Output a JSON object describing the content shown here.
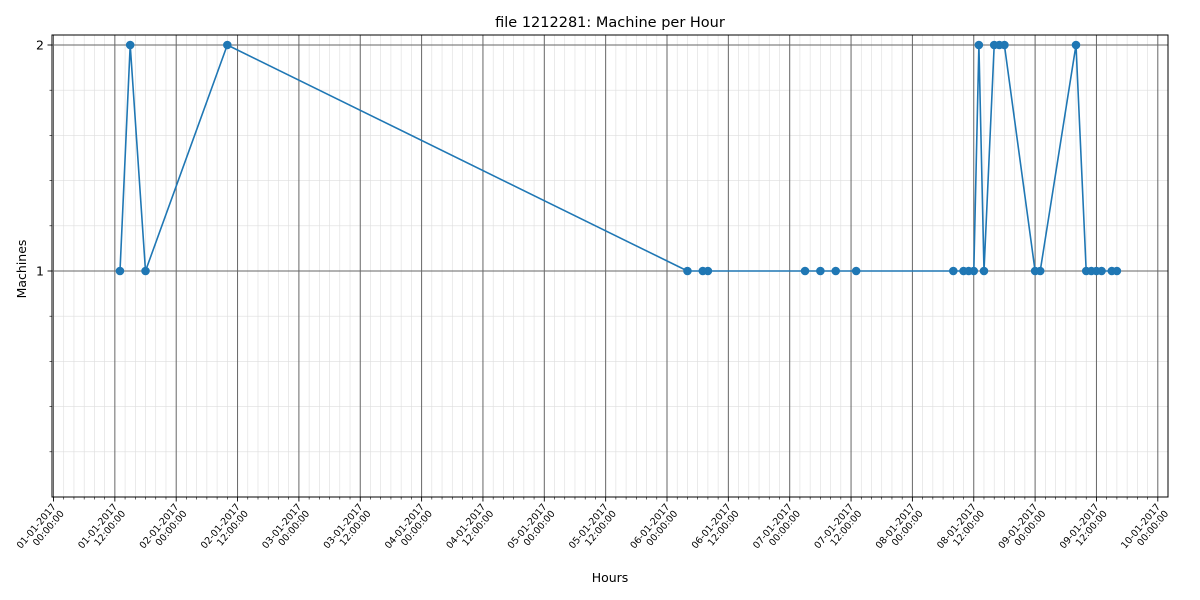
{
  "chart_data": {
    "type": "line",
    "title": "file 1212281: Machine per Hour",
    "xlabel": "Hours",
    "ylabel": "Machines",
    "x_tick_labels": [
      [
        "01-01-2017",
        "00:00:00"
      ],
      [
        "01-01-2017",
        "12:00:00"
      ],
      [
        "02-01-2017",
        "00:00:00"
      ],
      [
        "02-01-2017",
        "12:00:00"
      ],
      [
        "03-01-2017",
        "00:00:00"
      ],
      [
        "03-01-2017",
        "12:00:00"
      ],
      [
        "04-01-2017",
        "00:00:00"
      ],
      [
        "04-01-2017",
        "12:00:00"
      ],
      [
        "05-01-2017",
        "00:00:00"
      ],
      [
        "05-01-2017",
        "12:00:00"
      ],
      [
        "06-01-2017",
        "00:00:00"
      ],
      [
        "06-01-2017",
        "12:00:00"
      ],
      [
        "07-01-2017",
        "00:00:00"
      ],
      [
        "07-01-2017",
        "12:00:00"
      ],
      [
        "08-01-2017",
        "00:00:00"
      ],
      [
        "08-01-2017",
        "12:00:00"
      ],
      [
        "09-01-2017",
        "00:00:00"
      ],
      [
        "09-01-2017",
        "12:00:00"
      ],
      [
        "10-01-2017",
        "00:00:00"
      ]
    ],
    "y_ticks": [
      1,
      2
    ],
    "ylim": [
      0.0,
      2.05
    ],
    "xlim": [
      "01-01-2017 00:00",
      "10-01-2017 00:00"
    ],
    "grid": true,
    "color": "#1f77b4",
    "x": [
      "01-01-2017 13:00",
      "01-01-2017 15:00",
      "01-01-2017 18:00",
      "02-01-2017 10:00",
      "06-01-2017 04:00",
      "06-01-2017 07:00",
      "06-01-2017 08:00",
      "07-01-2017 03:00",
      "07-01-2017 06:00",
      "07-01-2017 09:00",
      "07-01-2017 13:00",
      "08-01-2017 08:00",
      "08-01-2017 10:00",
      "08-01-2017 11:00",
      "08-01-2017 12:00",
      "08-01-2017 13:00",
      "08-01-2017 14:00",
      "08-01-2017 16:00",
      "08-01-2017 17:00",
      "08-01-2017 18:00",
      "09-01-2017 00:00",
      "09-01-2017 01:00",
      "09-01-2017 08:00",
      "09-01-2017 10:00",
      "09-01-2017 11:00",
      "09-01-2017 12:00",
      "09-01-2017 13:00",
      "09-01-2017 15:00",
      "09-01-2017 16:00"
    ],
    "values": [
      1,
      2,
      1,
      2,
      1,
      1,
      1,
      1,
      1,
      1,
      1,
      1,
      1,
      1,
      1,
      2,
      1,
      2,
      2,
      2,
      1,
      1,
      2,
      1,
      1,
      1,
      1,
      1,
      1
    ]
  }
}
